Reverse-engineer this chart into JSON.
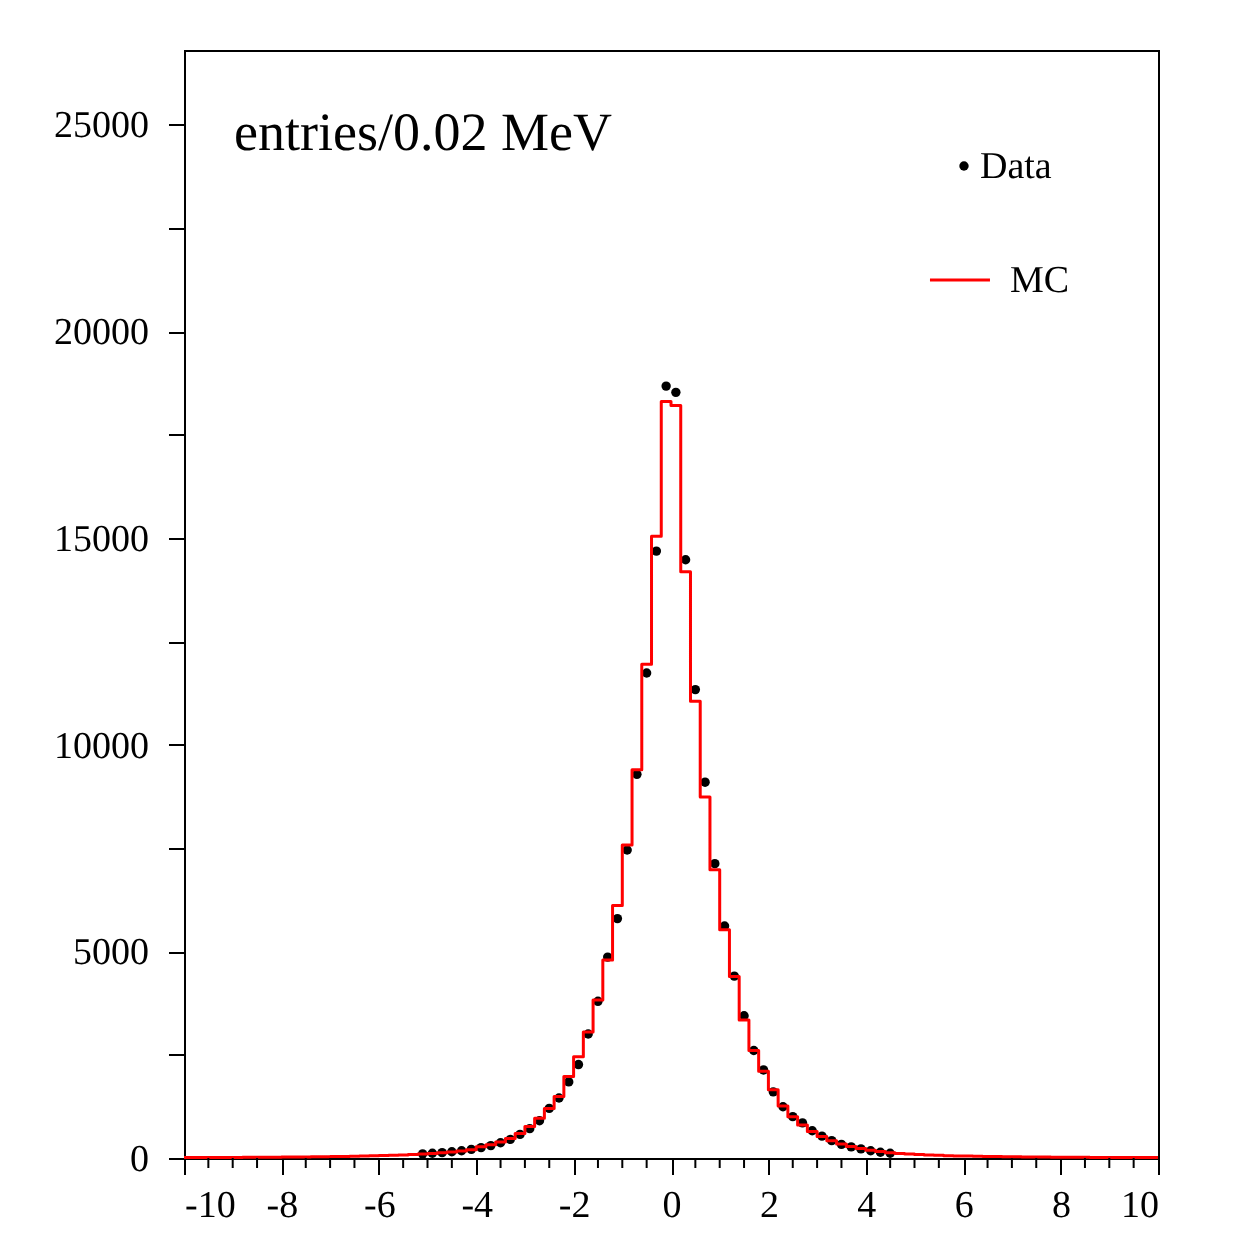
{
  "chart_data": {
    "type": "histogram",
    "ylabel": "entries/0.02 MeV",
    "xlim": [
      -10,
      10
    ],
    "ylim": [
      0,
      26800
    ],
    "xticks": [
      -10,
      {
        "value": -9.5,
        "label": null
      },
      {
        "value": -9,
        "label": null
      },
      {
        "value": -8.5,
        "label": null
      },
      -8,
      {
        "value": -7.5,
        "label": null
      },
      {
        "value": -7,
        "label": null
      },
      {
        "value": -6.5,
        "label": null
      },
      -6,
      {
        "value": -5.5,
        "label": null
      },
      {
        "value": -5,
        "label": null
      },
      {
        "value": -4.5,
        "label": null
      },
      -4,
      {
        "value": -3.5,
        "label": null
      },
      {
        "value": -3,
        "label": null
      },
      {
        "value": -2.5,
        "label": null
      },
      -2,
      {
        "value": -1.5,
        "label": null
      },
      {
        "value": -1,
        "label": null
      },
      {
        "value": -0.5,
        "label": null
      },
      0,
      {
        "value": 0.5,
        "label": null
      },
      {
        "value": 1,
        "label": null
      },
      {
        "value": 1.5,
        "label": null
      },
      2,
      {
        "value": 2.5,
        "label": null
      },
      {
        "value": 3,
        "label": null
      },
      {
        "value": 3.5,
        "label": null
      },
      4,
      {
        "value": 4.5,
        "label": null
      },
      {
        "value": 5,
        "label": null
      },
      {
        "value": 5.5,
        "label": null
      },
      6,
      {
        "value": 6.5,
        "label": null
      },
      {
        "value": 7,
        "label": null
      },
      {
        "value": 7.5,
        "label": null
      },
      8,
      {
        "value": 8.5,
        "label": null
      },
      {
        "value": 9,
        "label": null
      },
      {
        "value": 9.5,
        "label": null
      },
      10
    ],
    "yticks": [
      0,
      {
        "value": 2500,
        "label": null
      },
      5000,
      {
        "value": 7500,
        "label": null
      },
      10000,
      {
        "value": 12500,
        "label": null
      },
      15000,
      {
        "value": 17500,
        "label": null
      },
      20000,
      {
        "value": 22500,
        "label": null
      },
      25000
    ],
    "grid": false,
    "legend": "top right",
    "series": [
      {
        "name": "Data",
        "type": "scatter",
        "color": "#000000",
        "marker": "circle",
        "x": [
          -5.1,
          -4.9,
          -4.7,
          -4.5,
          -4.3,
          -4.1,
          -3.9,
          -3.7,
          -3.5,
          -3.3,
          -3.1,
          -2.9,
          -2.7,
          -2.5,
          -2.3,
          -2.1,
          -1.9,
          -1.7,
          -1.5,
          -1.3,
          -1.1,
          -0.9,
          -0.7,
          -0.5,
          -0.3,
          -0.1,
          0.1,
          0.3,
          0.5,
          0.7,
          0.9,
          1.1,
          1.3,
          1.5,
          1.7,
          1.9,
          2.1,
          2.3,
          2.5,
          2.7,
          2.9,
          3.1,
          3.3,
          3.5,
          3.7,
          3.9,
          4.1,
          4.3,
          4.5
        ],
        "values": [
          100,
          115,
          130,
          150,
          175,
          210,
          250,
          300,
          370,
          450,
          570,
          710,
          900,
          1200,
          1450,
          1840,
          2260,
          3000,
          3790,
          4860,
          5790,
          7450,
          9280,
          11730,
          14680,
          18670,
          18520,
          14470,
          11330,
          9090,
          7120,
          5610,
          4400,
          3440,
          2600,
          2130,
          1600,
          1240,
          1000,
          850,
          660,
          530,
          420,
          330,
          270,
          220,
          175,
          140,
          115
        ]
      },
      {
        "name": "MC",
        "type": "histogram",
        "color": "#ff0000",
        "bins": [
          -10,
          -9.8,
          -9.6,
          -9.4,
          -9.2,
          -9,
          -8.8,
          -8.6,
          -8.4,
          -8.2,
          -8,
          -7.8,
          -7.6,
          -7.4,
          -7.2,
          -7,
          -6.8,
          -6.6,
          -6.4,
          -6.2,
          -6,
          -5.8,
          -5.6,
          -5.4,
          -5.2,
          -5,
          -4.8,
          -4.6,
          -4.4,
          -4.2,
          -4,
          -3.8,
          -3.6,
          -3.4,
          -3.2,
          -3,
          -2.8,
          -2.6,
          -2.4,
          -2.2,
          -2,
          -1.8,
          -1.6,
          -1.4,
          -1.2,
          -1,
          -0.8,
          -0.6,
          -0.4,
          -0.2,
          0,
          0.2,
          0.4,
          0.6,
          0.8,
          1,
          1.2,
          1.4,
          1.6,
          1.8,
          2,
          2.2,
          2.4,
          2.6,
          2.8,
          3,
          3.2,
          3.4,
          3.6,
          3.8,
          4,
          4.2,
          4.4,
          4.6,
          4.8,
          5,
          5.2,
          5.4,
          5.6,
          5.8,
          6,
          6.2,
          6.4,
          6.6,
          6.8,
          7,
          7.2,
          7.4,
          7.6,
          7.8,
          8,
          8.2,
          8.4,
          8.6,
          8.8,
          9,
          9.2,
          9.4,
          9.6,
          9.8,
          10
        ],
        "values": [
          10,
          10,
          12,
          12,
          14,
          15,
          16,
          18,
          19,
          20,
          22,
          24,
          26,
          28,
          31,
          34,
          38,
          42,
          47,
          52,
          58,
          65,
          72,
          82,
          95,
          110,
          125,
          145,
          170,
          200,
          270,
          320,
          390,
          470,
          590,
          760,
          960,
          1200,
          1490,
          1970,
          2450,
          3050,
          3820,
          4790,
          6110,
          7570,
          9390,
          11940,
          15040,
          18300,
          18200,
          14180,
          11050,
          8730,
          6970,
          5520,
          4390,
          3340,
          2600,
          2100,
          1650,
          1260,
          1000,
          800,
          640,
          520,
          420,
          340,
          280,
          230,
          190,
          155,
          130,
          110,
          95,
          82,
          72,
          64,
          57,
          51,
          46,
          42,
          38,
          34,
          31,
          28,
          26,
          24,
          22,
          20,
          19,
          18,
          16,
          15,
          14,
          12,
          12,
          10,
          10,
          10
        ]
      }
    ]
  }
}
